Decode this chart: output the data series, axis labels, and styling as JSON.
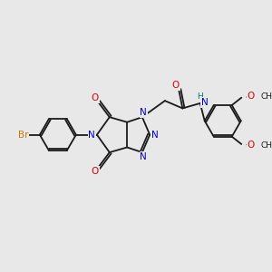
{
  "background_color": "#e8e8e8",
  "bond_color": "#1a1a1a",
  "atom_colors": {
    "N": "#0000cc",
    "O": "#dd0000",
    "Br": "#cc7700",
    "H": "#007777"
  },
  "figsize": [
    3.0,
    3.0
  ],
  "dpi": 100
}
